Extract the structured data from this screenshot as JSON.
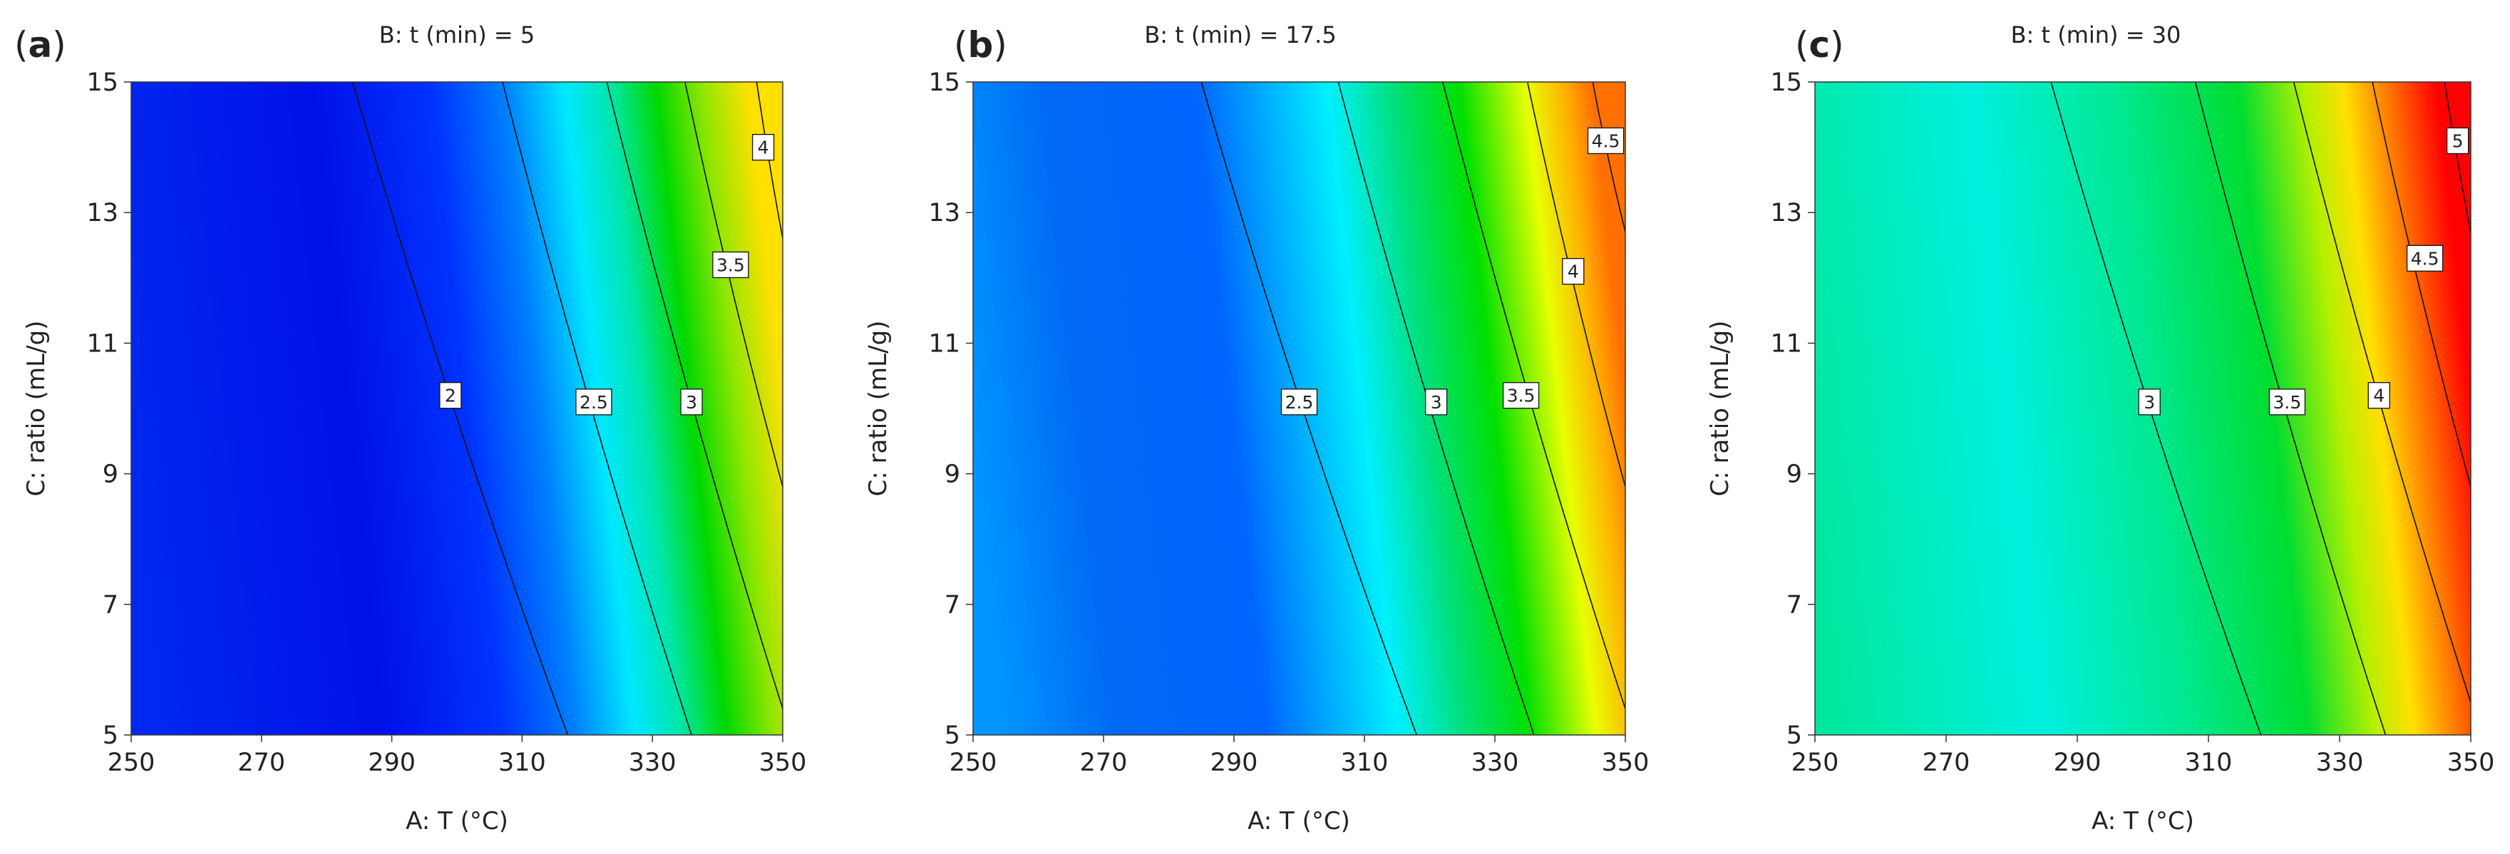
{
  "chart_data": [
    {
      "type": "contour",
      "panel": "(a)",
      "title": "B: t (min) = 5",
      "xlabel": "A: T (°C)",
      "ylabel": "C: ratio (mL/g)",
      "xlim": [
        250,
        350
      ],
      "ylim": [
        5,
        15
      ],
      "xticks": [
        250,
        270,
        290,
        310,
        330,
        350
      ],
      "yticks": [
        5,
        7,
        9,
        11,
        13,
        15
      ],
      "contours": [
        {
          "level": "2",
          "line": [
            [
              284,
              15
            ],
            [
              317,
              5
            ]
          ],
          "label_at": [
            299,
            10.2
          ]
        },
        {
          "level": "2.5",
          "line": [
            [
              307,
              15
            ],
            [
              336,
              5
            ]
          ],
          "label_at": [
            321,
            10.1
          ]
        },
        {
          "level": "3",
          "line": [
            [
              323,
              15
            ],
            [
              350,
              5.4
            ]
          ],
          "label_at": [
            336,
            10.1
          ]
        },
        {
          "level": "3.5",
          "line": [
            [
              335,
              15
            ],
            [
              350,
              8.8
            ]
          ],
          "label_at": [
            342,
            12.2
          ]
        },
        {
          "level": "4",
          "line": [
            [
              346,
              15
            ],
            [
              350,
              12.6
            ]
          ],
          "label_at": [
            347,
            14.0
          ]
        }
      ]
    },
    {
      "type": "contour",
      "panel": "(b)",
      "title": "B: t (min) = 17.5",
      "xlabel": "A: T (°C)",
      "ylabel": "C: ratio (mL/g)",
      "xlim": [
        250,
        350
      ],
      "ylim": [
        5,
        15
      ],
      "xticks": [
        250,
        270,
        290,
        310,
        330,
        350
      ],
      "yticks": [
        5,
        7,
        9,
        11,
        13,
        15
      ],
      "contours": [
        {
          "level": "2.5",
          "line": [
            [
              285,
              15
            ],
            [
              318,
              5
            ]
          ],
          "label_at": [
            300,
            10.1
          ]
        },
        {
          "level": "3",
          "line": [
            [
              306,
              15
            ],
            [
              336,
              5
            ]
          ],
          "label_at": [
            321,
            10.1
          ]
        },
        {
          "level": "3.5",
          "line": [
            [
              322,
              15
            ],
            [
              350,
              5.4
            ]
          ],
          "label_at": [
            334,
            10.2
          ]
        },
        {
          "level": "4",
          "line": [
            [
              335,
              15
            ],
            [
              350,
              8.8
            ]
          ],
          "label_at": [
            342,
            12.1
          ]
        },
        {
          "level": "4.5",
          "line": [
            [
              345,
              15
            ],
            [
              350,
              12.7
            ]
          ],
          "label_at": [
            347,
            14.1
          ]
        }
      ]
    },
    {
      "type": "contour",
      "panel": "(c)",
      "title": "B: t (min) = 30",
      "xlabel": "A: T (°C)",
      "ylabel": "C: ratio (mL/g)",
      "xlim": [
        250,
        350
      ],
      "ylim": [
        5,
        15
      ],
      "xticks": [
        250,
        270,
        290,
        310,
        330,
        350
      ],
      "yticks": [
        5,
        7,
        9,
        11,
        13,
        15
      ],
      "contours": [
        {
          "level": "3",
          "line": [
            [
              286,
              15
            ],
            [
              318,
              5
            ]
          ],
          "label_at": [
            301,
            10.1
          ]
        },
        {
          "level": "3.5",
          "line": [
            [
              308,
              15
            ],
            [
              337,
              5
            ]
          ],
          "label_at": [
            322,
            10.1
          ]
        },
        {
          "level": "4",
          "line": [
            [
              323,
              15
            ],
            [
              350,
              5.5
            ]
          ],
          "label_at": [
            336,
            10.2
          ]
        },
        {
          "level": "4.5",
          "line": [
            [
              335,
              15
            ],
            [
              350,
              8.8
            ]
          ],
          "label_at": [
            343,
            12.3
          ]
        },
        {
          "level": "5",
          "line": [
            [
              346,
              15
            ],
            [
              350,
              12.7
            ]
          ],
          "label_at": [
            348,
            14.1
          ]
        }
      ]
    }
  ]
}
